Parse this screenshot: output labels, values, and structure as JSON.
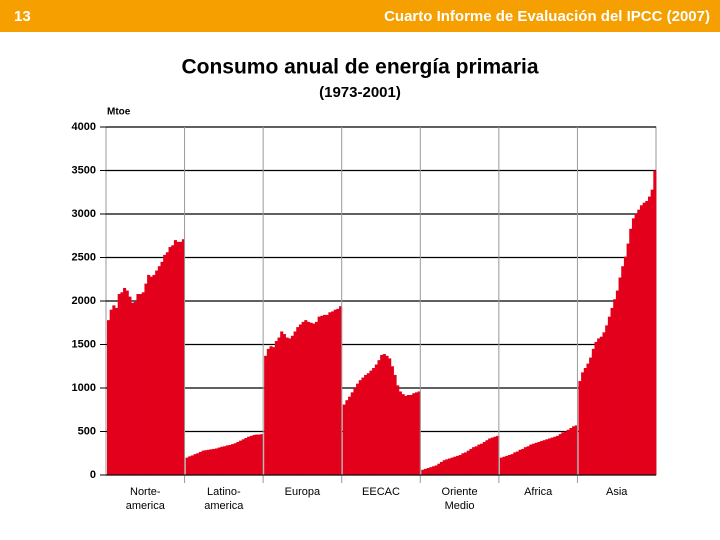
{
  "header": {
    "page_number": "13",
    "source": "Cuarto Informe de Evaluación del IPCC (2007)"
  },
  "chart_data": {
    "type": "bar",
    "title": "Consumo anual de energía primaria",
    "subtitle": "(1973-2001)",
    "y_axis_label": "Mtoe",
    "color": "#e3001b",
    "grid": true,
    "categories": [
      "Norte-\namerica",
      "Latino-\namerica",
      "Europa",
      "EECAC",
      "Oriente\nMedio",
      "Africa",
      "Asia"
    ],
    "values": [
      [
        1780,
        1900,
        1950,
        1920,
        2080,
        2100,
        2150,
        2120,
        2050,
        1980,
        1990,
        2080,
        2080,
        2100,
        2200,
        2300,
        2280,
        2300,
        2350,
        2400,
        2450,
        2530,
        2560,
        2620,
        2640,
        2700,
        2680,
        2680,
        2710
      ],
      [
        200,
        215,
        225,
        240,
        250,
        265,
        280,
        285,
        290,
        295,
        300,
        305,
        315,
        325,
        330,
        340,
        345,
        355,
        365,
        380,
        395,
        410,
        425,
        440,
        450,
        460,
        465,
        465,
        470
      ],
      [
        1370,
        1450,
        1480,
        1470,
        1540,
        1580,
        1650,
        1620,
        1580,
        1570,
        1600,
        1650,
        1700,
        1730,
        1760,
        1780,
        1760,
        1750,
        1740,
        1760,
        1820,
        1830,
        1840,
        1840,
        1870,
        1880,
        1900,
        1910,
        1940
      ],
      [
        810,
        860,
        900,
        950,
        1000,
        1050,
        1090,
        1120,
        1150,
        1170,
        1200,
        1230,
        1270,
        1320,
        1380,
        1390,
        1370,
        1340,
        1250,
        1150,
        1030,
        960,
        930,
        910,
        920,
        920,
        940,
        950,
        960
      ],
      [
        60,
        70,
        80,
        90,
        100,
        110,
        130,
        150,
        170,
        180,
        190,
        200,
        210,
        220,
        230,
        250,
        260,
        280,
        300,
        320,
        330,
        350,
        360,
        380,
        400,
        420,
        430,
        440,
        450
      ],
      [
        200,
        210,
        220,
        230,
        240,
        260,
        270,
        290,
        300,
        320,
        330,
        350,
        360,
        370,
        380,
        390,
        400,
        410,
        420,
        430,
        440,
        450,
        470,
        490,
        500,
        520,
        540,
        560,
        570
      ],
      [
        1080,
        1180,
        1230,
        1280,
        1350,
        1450,
        1530,
        1570,
        1590,
        1640,
        1720,
        1820,
        1920,
        2020,
        2120,
        2270,
        2400,
        2510,
        2660,
        2830,
        2950,
        3000,
        3050,
        3100,
        3130,
        3150,
        3200,
        3280,
        3500
      ]
    ],
    "ylim": [
      0,
      4000
    ],
    "yticks": [
      0,
      500,
      1000,
      1500,
      2000,
      2500,
      3000,
      3500,
      4000
    ]
  }
}
